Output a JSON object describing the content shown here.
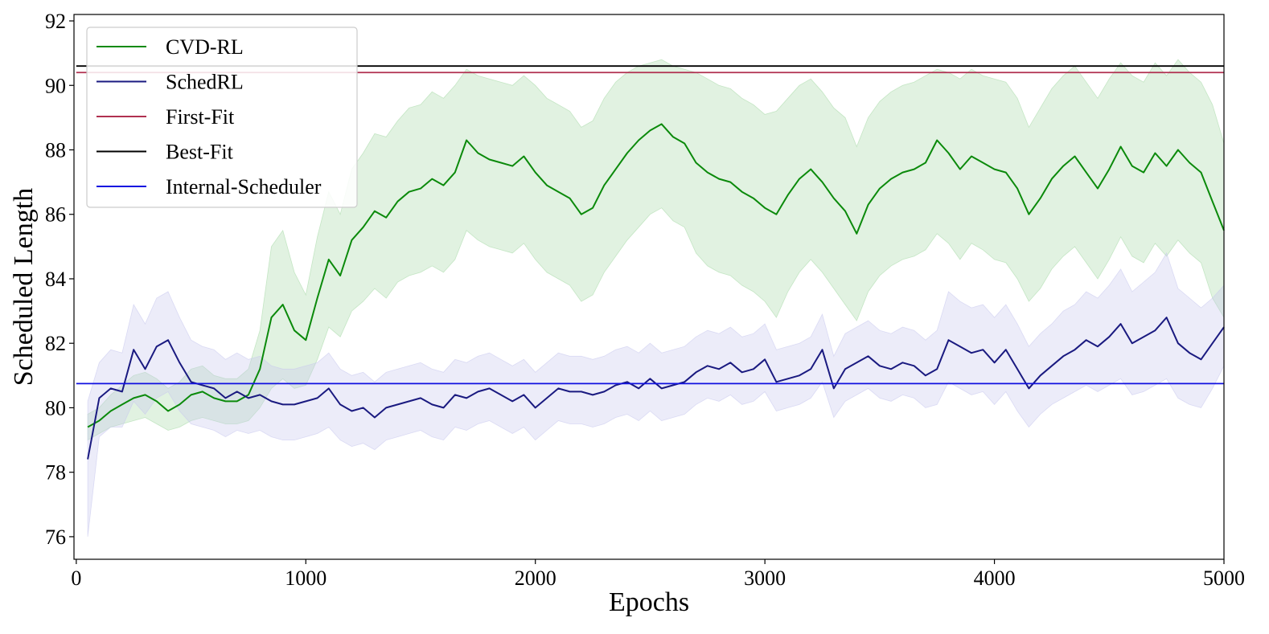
{
  "chart_data": {
    "type": "line",
    "title": "",
    "xlabel": "Epochs",
    "ylabel": "Scheduled Length",
    "xlim": [
      -10,
      5000
    ],
    "ylim": [
      75.3,
      92.2
    ],
    "x_ticks": [
      0,
      1000,
      2000,
      3000,
      4000,
      5000
    ],
    "y_ticks": [
      76,
      78,
      80,
      82,
      84,
      86,
      88,
      90,
      92
    ],
    "grid": false,
    "legend_position": "top-left",
    "series": [
      {
        "name": "CVD-RL",
        "color": "#0b8a0b",
        "band_color": "#a8dba8",
        "x": [
          50,
          100,
          150,
          200,
          250,
          300,
          350,
          400,
          450,
          500,
          550,
          600,
          650,
          700,
          750,
          800,
          850,
          900,
          950,
          1000,
          1050,
          1100,
          1150,
          1200,
          1250,
          1300,
          1350,
          1400,
          1450,
          1500,
          1550,
          1600,
          1650,
          1700,
          1750,
          1800,
          1850,
          1900,
          1950,
          2000,
          2050,
          2100,
          2150,
          2200,
          2250,
          2300,
          2350,
          2400,
          2450,
          2500,
          2550,
          2600,
          2650,
          2700,
          2750,
          2800,
          2850,
          2900,
          2950,
          3000,
          3050,
          3100,
          3150,
          3200,
          3250,
          3300,
          3350,
          3400,
          3450,
          3500,
          3550,
          3600,
          3650,
          3700,
          3750,
          3800,
          3850,
          3900,
          3950,
          4000,
          4050,
          4100,
          4150,
          4200,
          4250,
          4300,
          4350,
          4400,
          4450,
          4500,
          4550,
          4600,
          4650,
          4700,
          4750,
          4800,
          4850,
          4900,
          4950,
          5000
        ],
        "y": [
          79.4,
          79.6,
          79.9,
          80.1,
          80.3,
          80.4,
          80.2,
          79.9,
          80.1,
          80.4,
          80.5,
          80.3,
          80.2,
          80.2,
          80.4,
          81.2,
          82.8,
          83.2,
          82.4,
          82.1,
          83.4,
          84.6,
          84.1,
          85.2,
          85.6,
          86.1,
          85.9,
          86.4,
          86.7,
          86.8,
          87.1,
          86.9,
          87.3,
          88.3,
          87.9,
          87.7,
          87.6,
          87.5,
          87.8,
          87.3,
          86.9,
          86.7,
          86.5,
          86.0,
          86.2,
          86.9,
          87.4,
          87.9,
          88.3,
          88.6,
          88.8,
          88.4,
          88.2,
          87.6,
          87.3,
          87.1,
          87.0,
          86.7,
          86.5,
          86.2,
          86.0,
          86.6,
          87.1,
          87.4,
          87.0,
          86.5,
          86.1,
          85.4,
          86.3,
          86.8,
          87.1,
          87.3,
          87.4,
          87.6,
          88.3,
          87.9,
          87.4,
          87.8,
          87.6,
          87.4,
          87.3,
          86.8,
          86.0,
          86.5,
          87.1,
          87.5,
          87.8,
          87.3,
          86.8,
          87.4,
          88.1,
          87.5,
          87.3,
          87.9,
          87.5,
          88.0,
          87.6,
          87.3,
          86.4,
          85.5
        ],
        "band_lower": [
          79.0,
          79.2,
          79.4,
          79.5,
          79.6,
          79.7,
          79.5,
          79.3,
          79.4,
          79.6,
          79.7,
          79.6,
          79.5,
          79.5,
          79.6,
          80.0,
          80.6,
          80.9,
          80.6,
          80.7,
          81.5,
          82.5,
          82.2,
          83.0,
          83.3,
          83.7,
          83.4,
          83.9,
          84.1,
          84.2,
          84.4,
          84.2,
          84.6,
          85.5,
          85.2,
          85.0,
          84.9,
          84.8,
          85.1,
          84.6,
          84.2,
          84.0,
          83.8,
          83.3,
          83.5,
          84.2,
          84.7,
          85.2,
          85.6,
          86.0,
          86.2,
          85.8,
          85.6,
          84.8,
          84.4,
          84.2,
          84.1,
          83.8,
          83.6,
          83.3,
          82.8,
          83.6,
          84.2,
          84.6,
          84.2,
          83.7,
          83.2,
          82.7,
          83.6,
          84.1,
          84.4,
          84.6,
          84.7,
          84.9,
          85.4,
          85.1,
          84.6,
          85.1,
          84.9,
          84.6,
          84.5,
          84.0,
          83.3,
          83.7,
          84.3,
          84.7,
          85.0,
          84.5,
          84.0,
          84.6,
          85.3,
          84.7,
          84.5,
          85.1,
          84.7,
          85.2,
          84.8,
          84.5,
          83.4,
          82.8
        ],
        "band_upper": [
          79.8,
          80.0,
          80.4,
          80.7,
          81.0,
          81.1,
          80.9,
          80.6,
          80.8,
          81.2,
          81.3,
          81.0,
          80.9,
          80.9,
          81.2,
          82.4,
          85.0,
          85.5,
          84.2,
          83.5,
          85.3,
          86.7,
          86.0,
          87.4,
          87.9,
          88.5,
          88.4,
          88.9,
          89.3,
          89.4,
          89.8,
          89.6,
          90.0,
          90.5,
          90.3,
          90.2,
          90.1,
          90.0,
          90.3,
          90.0,
          89.6,
          89.4,
          89.2,
          88.7,
          88.9,
          89.6,
          90.1,
          90.4,
          90.6,
          90.7,
          90.8,
          90.6,
          90.5,
          90.4,
          90.2,
          90.0,
          89.9,
          89.6,
          89.4,
          89.1,
          89.2,
          89.6,
          90.0,
          90.2,
          89.8,
          89.3,
          89.0,
          88.1,
          89.0,
          89.5,
          89.8,
          90.0,
          90.1,
          90.3,
          90.5,
          90.4,
          90.2,
          90.5,
          90.3,
          90.2,
          90.1,
          89.6,
          88.7,
          89.3,
          89.9,
          90.3,
          90.6,
          90.1,
          89.6,
          90.2,
          90.7,
          90.3,
          90.1,
          90.7,
          90.3,
          90.8,
          90.4,
          90.1,
          89.4,
          88.2
        ]
      },
      {
        "name": "SchedRL",
        "color": "#1a1a80",
        "band_color": "#c8c8ee",
        "x": [
          50,
          100,
          150,
          200,
          250,
          300,
          350,
          400,
          450,
          500,
          550,
          600,
          650,
          700,
          750,
          800,
          850,
          900,
          950,
          1000,
          1050,
          1100,
          1150,
          1200,
          1250,
          1300,
          1350,
          1400,
          1450,
          1500,
          1550,
          1600,
          1650,
          1700,
          1750,
          1800,
          1850,
          1900,
          1950,
          2000,
          2050,
          2100,
          2150,
          2200,
          2250,
          2300,
          2350,
          2400,
          2450,
          2500,
          2550,
          2600,
          2650,
          2700,
          2750,
          2800,
          2850,
          2900,
          2950,
          3000,
          3050,
          3100,
          3150,
          3200,
          3250,
          3300,
          3350,
          3400,
          3450,
          3500,
          3550,
          3600,
          3650,
          3700,
          3750,
          3800,
          3850,
          3900,
          3950,
          4000,
          4050,
          4100,
          4150,
          4200,
          4250,
          4300,
          4350,
          4400,
          4450,
          4500,
          4550,
          4600,
          4650,
          4700,
          4750,
          4800,
          4850,
          4900,
          4950,
          5000
        ],
        "y": [
          78.4,
          80.3,
          80.6,
          80.5,
          81.8,
          81.2,
          81.9,
          82.1,
          81.4,
          80.8,
          80.7,
          80.6,
          80.3,
          80.5,
          80.3,
          80.4,
          80.2,
          80.1,
          80.1,
          80.2,
          80.3,
          80.6,
          80.1,
          79.9,
          80.0,
          79.7,
          80.0,
          80.1,
          80.2,
          80.3,
          80.1,
          80.0,
          80.4,
          80.3,
          80.5,
          80.6,
          80.4,
          80.2,
          80.4,
          80.0,
          80.3,
          80.6,
          80.5,
          80.5,
          80.4,
          80.5,
          80.7,
          80.8,
          80.6,
          80.9,
          80.6,
          80.7,
          80.8,
          81.1,
          81.3,
          81.2,
          81.4,
          81.1,
          81.2,
          81.5,
          80.8,
          80.9,
          81.0,
          81.2,
          81.8,
          80.6,
          81.2,
          81.4,
          81.6,
          81.3,
          81.2,
          81.4,
          81.3,
          81.0,
          81.2,
          82.1,
          81.9,
          81.7,
          81.8,
          81.4,
          81.8,
          81.2,
          80.6,
          81.0,
          81.3,
          81.6,
          81.8,
          82.1,
          81.9,
          82.2,
          82.6,
          82.0,
          82.2,
          82.4,
          82.8,
          82.0,
          81.7,
          81.5,
          82.0,
          82.5
        ],
        "band_lower": [
          76.0,
          79.1,
          79.4,
          79.4,
          80.2,
          79.8,
          80.3,
          80.5,
          79.9,
          79.5,
          79.4,
          79.3,
          79.1,
          79.3,
          79.2,
          79.3,
          79.1,
          79.0,
          79.0,
          79.1,
          79.2,
          79.4,
          79.0,
          78.8,
          78.9,
          78.7,
          79.0,
          79.1,
          79.2,
          79.3,
          79.1,
          79.0,
          79.4,
          79.3,
          79.5,
          79.6,
          79.4,
          79.2,
          79.4,
          79.0,
          79.3,
          79.6,
          79.5,
          79.5,
          79.4,
          79.5,
          79.7,
          79.8,
          79.6,
          79.9,
          79.6,
          79.7,
          79.8,
          80.1,
          80.3,
          80.2,
          80.4,
          80.1,
          80.2,
          80.5,
          79.9,
          80.0,
          80.1,
          80.3,
          80.8,
          79.7,
          80.2,
          80.4,
          80.6,
          80.3,
          80.2,
          80.4,
          80.3,
          80.0,
          80.1,
          80.8,
          80.6,
          80.4,
          80.5,
          80.1,
          80.5,
          79.9,
          79.4,
          79.8,
          80.1,
          80.3,
          80.5,
          80.7,
          80.5,
          80.7,
          80.9,
          80.4,
          80.5,
          80.7,
          80.9,
          80.3,
          80.1,
          80.0,
          80.6,
          81.3
        ],
        "band_upper": [
          80.2,
          81.4,
          81.8,
          81.7,
          83.2,
          82.6,
          83.4,
          83.6,
          82.8,
          82.1,
          81.9,
          81.8,
          81.5,
          81.7,
          81.5,
          81.6,
          81.3,
          81.2,
          81.2,
          81.3,
          81.4,
          81.7,
          81.2,
          81.0,
          81.1,
          80.8,
          81.1,
          81.2,
          81.3,
          81.4,
          81.2,
          81.1,
          81.5,
          81.4,
          81.6,
          81.7,
          81.5,
          81.3,
          81.5,
          81.1,
          81.4,
          81.7,
          81.6,
          81.6,
          81.5,
          81.6,
          81.8,
          81.9,
          81.7,
          82.0,
          81.7,
          81.8,
          81.9,
          82.2,
          82.4,
          82.3,
          82.5,
          82.2,
          82.3,
          82.6,
          81.8,
          81.9,
          82.0,
          82.2,
          82.9,
          81.6,
          82.3,
          82.5,
          82.7,
          82.4,
          82.3,
          82.5,
          82.4,
          82.1,
          82.4,
          83.6,
          83.3,
          83.1,
          83.2,
          82.8,
          83.2,
          82.6,
          81.9,
          82.3,
          82.6,
          83.0,
          83.2,
          83.6,
          83.4,
          83.8,
          84.3,
          83.6,
          83.9,
          84.2,
          84.8,
          83.7,
          83.4,
          83.1,
          83.4,
          83.8
        ]
      },
      {
        "name": "First-Fit",
        "color": "#b03050",
        "constant": 90.4,
        "x": [
          0,
          5000
        ]
      },
      {
        "name": "Best-Fit",
        "color": "#000000",
        "constant": 90.6,
        "x": [
          0,
          5000
        ]
      },
      {
        "name": "Internal-Scheduler",
        "color": "#1010e0",
        "constant": 80.75,
        "x": [
          0,
          5000
        ]
      }
    ]
  }
}
